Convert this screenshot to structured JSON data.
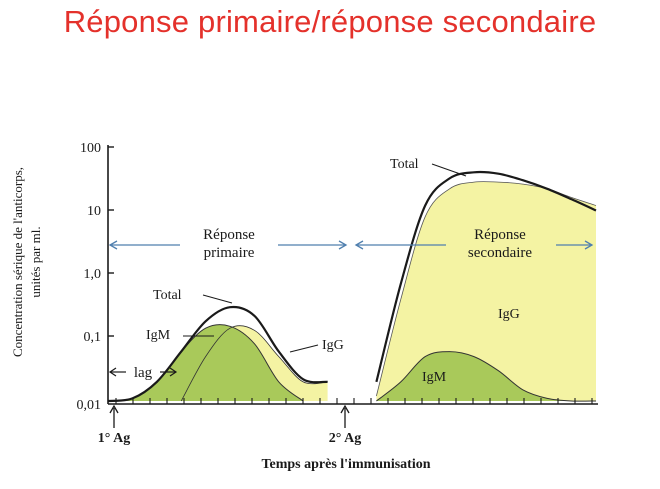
{
  "title": "Réponse primaire/réponse secondaire",
  "colors": {
    "title": "#e4312b",
    "igg_fill": "#f4f3a3",
    "igm_fill": "#a9c95a",
    "arrow": "#4f7fae",
    "line": "#1a1a1a"
  },
  "chart_data": {
    "type": "area",
    "scale": "log",
    "ylabel": "Concentration sérique de l'anticorps, unités par ml.",
    "xlabel": "Temps après l'immunisation",
    "yticks": [
      "100",
      "10",
      "1,0",
      "0,1",
      "0,01"
    ],
    "ytick_values": [
      100,
      10,
      1,
      0.1,
      0.01
    ],
    "ylim": [
      0.01,
      100
    ],
    "xlim": [
      0,
      100
    ],
    "x": [
      0,
      5,
      10,
      15,
      20,
      25,
      30,
      35,
      40,
      45,
      50,
      55,
      60,
      65,
      70,
      75,
      80,
      85,
      90,
      95,
      100
    ],
    "series": [
      {
        "name": "Total",
        "values": [
          0.01,
          0.011,
          0.02,
          0.06,
          0.18,
          0.3,
          0.22,
          0.06,
          0.022,
          0.02,
          null,
          0.02,
          0.7,
          12,
          32,
          40,
          38,
          30,
          22,
          15,
          10
        ]
      },
      {
        "name": "IgM",
        "values": [
          0.01,
          0.011,
          0.02,
          0.06,
          0.14,
          0.15,
          0.08,
          0.02,
          0.01,
          null,
          null,
          0.01,
          0.02,
          0.05,
          0.06,
          0.05,
          0.03,
          0.015,
          0.011,
          0.01,
          0.01
        ]
      },
      {
        "name": "IgG",
        "values": [
          null,
          null,
          null,
          0.01,
          0.05,
          0.14,
          0.13,
          0.05,
          0.02,
          0.02,
          null,
          0.012,
          0.4,
          8,
          22,
          28,
          28,
          26,
          22,
          16,
          12
        ]
      }
    ],
    "annotations": [
      {
        "label": "Total",
        "series": "Total",
        "phase": "primary"
      },
      {
        "label": "IgM",
        "series": "IgM",
        "phase": "primary"
      },
      {
        "label": "IgG",
        "series": "IgG",
        "phase": "primary"
      },
      {
        "label": "Total",
        "series": "Total",
        "phase": "secondary"
      },
      {
        "label": "IgG",
        "series": "IgG",
        "phase": "secondary"
      },
      {
        "label": "IgM",
        "series": "IgM",
        "phase": "secondary"
      }
    ],
    "phases": {
      "primary_line1": "Réponse",
      "primary_line2": "primaire",
      "secondary_line1": "Réponse",
      "secondary_line2": "secondaire",
      "lag": "lag"
    },
    "events": [
      {
        "label": "1° Ag",
        "x": 0
      },
      {
        "label": "2° Ag",
        "x": 46
      }
    ]
  }
}
